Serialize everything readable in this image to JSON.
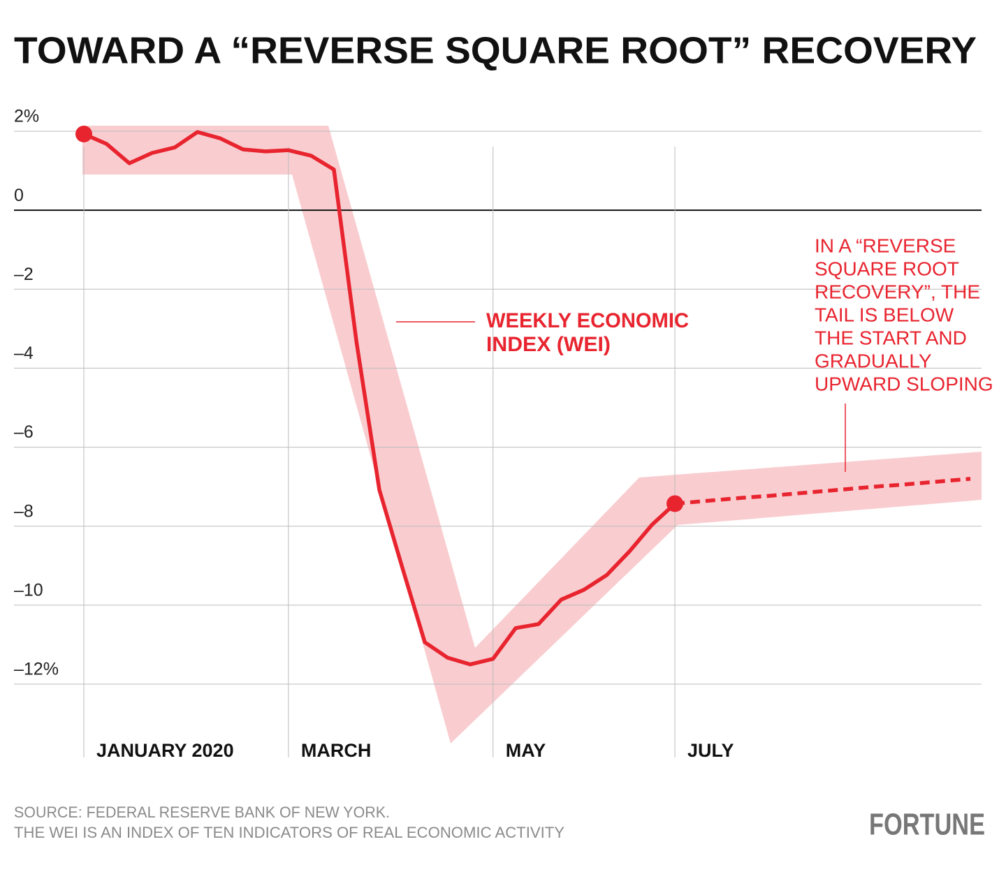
{
  "chart_data": {
    "type": "line",
    "title": "TOWARD A “REVERSE SQUARE ROOT” RECOVERY",
    "categories": [
      "JANUARY 2020",
      null,
      null,
      null,
      null,
      null,
      null,
      null,
      null,
      "MARCH",
      null,
      null,
      null,
      null,
      null,
      null,
      null,
      null,
      "MAY",
      null,
      null,
      null,
      null,
      null,
      null,
      null,
      "JULY",
      null,
      null,
      null,
      null,
      null,
      null,
      null,
      null,
      null,
      null,
      null,
      null,
      null
    ],
    "series": [
      {
        "color": "#e8242f",
        "style": "solid",
        "values": [
          1.93,
          1.68,
          1.19,
          1.45,
          1.59,
          1.98,
          1.82,
          1.54,
          1.49,
          1.52,
          1.38,
          1.03,
          -3.36,
          -7.08,
          -9.03,
          -10.94,
          -11.33,
          -11.5,
          -11.36,
          -10.58,
          -10.48,
          -9.86,
          -9.61,
          -9.24,
          -8.64,
          -7.96,
          -7.43,
          null,
          null,
          null,
          null,
          null,
          null,
          null,
          null,
          null,
          null,
          null,
          null,
          null
        ]
      },
      {
        "color": "#e8242f",
        "style": "dashed",
        "values": [
          null,
          null,
          null,
          null,
          null,
          null,
          null,
          null,
          null,
          null,
          null,
          null,
          null,
          null,
          null,
          null,
          null,
          null,
          null,
          null,
          null,
          null,
          null,
          null,
          null,
          null,
          -7.43,
          -7.38,
          -7.33,
          -7.28,
          -7.24,
          -7.19,
          -7.14,
          -7.09,
          -7.04,
          -6.99,
          -6.95,
          -6.9,
          -6.85,
          -6.8
        ]
      }
    ],
    "ylim": [
      -12,
      2
    ],
    "yticks": [
      {
        "value": 2,
        "label": "2%"
      },
      0,
      {
        "value": -2,
        "label": "–2"
      },
      {
        "value": -4,
        "label": "–4"
      },
      {
        "value": -6,
        "label": "–6"
      },
      {
        "value": -8,
        "label": "–8"
      },
      {
        "value": -10,
        "label": "–10"
      },
      {
        "value": -12,
        "label": "–12%"
      }
    ],
    "grid": true,
    "wei_label": [
      "WEEKLY ECONOMIC",
      "INDEX (WEI)"
    ],
    "tail_note": [
      "IN A “REVERSE",
      "SQUARE ROOT",
      "RECOVERY”, THE",
      "TAIL IS BELOW",
      "THE START AND",
      "GRADUALLY",
      "UPWARD SLOPING"
    ],
    "source": [
      "SOURCE: FEDERAL RESERVE BANK OF NEW YORK.",
      "THE WEI IS AN INDEX OF TEN INDICATORS OF REAL ECONOMIC ACTIVITY"
    ],
    "brand": "FORTUNE"
  }
}
